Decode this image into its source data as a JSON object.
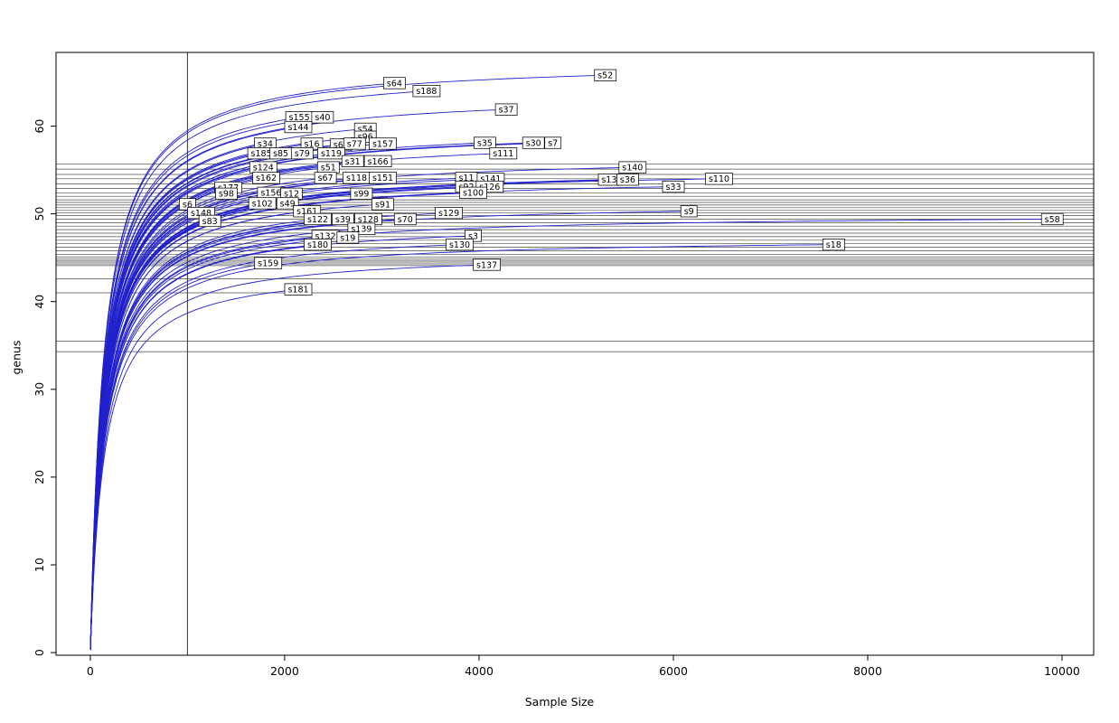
{
  "chart_data": {
    "type": "line",
    "title": "",
    "xlabel": "Sample Size",
    "ylabel": "genus",
    "xlim": [
      -353,
      10326
    ],
    "ylim": [
      -0.3,
      68.4
    ],
    "x_ticks": [
      0,
      2000,
      4000,
      6000,
      8000,
      10000
    ],
    "y_ticks": [
      0,
      10,
      20,
      30,
      40,
      50,
      60
    ],
    "grid": false,
    "legend": "none",
    "vline_x": 1000,
    "line_color": "#2020cc",
    "hline_color": "#4a4a4a",
    "axis_color": "#000000",
    "label_box_fill": "#ffffff",
    "label_box_stroke": "#000000",
    "curve_saturation_k": 140,
    "hlines": [
      55.7,
      55.1,
      54.5,
      54.0,
      53.4,
      52.9,
      52.4,
      52.0,
      51.6,
      51.3,
      51.0,
      50.7,
      50.4,
      50.1,
      49.8,
      49.4,
      49.0,
      48.6,
      48.2,
      47.8,
      47.4,
      47.0,
      46.6,
      46.2,
      45.8,
      45.4,
      45.1,
      44.9,
      44.7,
      44.5,
      44.3,
      44.1,
      42.6,
      41.0,
      35.5,
      34.3
    ],
    "samples": [
      {
        "label": "s52",
        "x": 5300,
        "y": 65.8
      },
      {
        "label": "s64",
        "x": 3130,
        "y": 64.9
      },
      {
        "label": "s188",
        "x": 3460,
        "y": 64.0
      },
      {
        "label": "s37",
        "x": 4280,
        "y": 61.9
      },
      {
        "label": "s155",
        "x": 2150,
        "y": 61.0
      },
      {
        "label": "s40",
        "x": 2390,
        "y": 61.0
      },
      {
        "label": "s144",
        "x": 2140,
        "y": 59.9
      },
      {
        "label": "s54",
        "x": 2830,
        "y": 59.7
      },
      {
        "label": "s96",
        "x": 2830,
        "y": 58.8
      },
      {
        "label": "s34",
        "x": 1800,
        "y": 58.0
      },
      {
        "label": "s16",
        "x": 2280,
        "y": 58.0
      },
      {
        "label": "s65",
        "x": 2580,
        "y": 57.9
      },
      {
        "label": "s77",
        "x": 2720,
        "y": 58.0
      },
      {
        "label": "s157",
        "x": 3010,
        "y": 58.0
      },
      {
        "label": "s35",
        "x": 4060,
        "y": 58.1
      },
      {
        "label": "s30",
        "x": 4560,
        "y": 58.1
      },
      {
        "label": "s7",
        "x": 4760,
        "y": 58.1
      },
      {
        "label": "s185",
        "x": 1760,
        "y": 56.9
      },
      {
        "label": "s85",
        "x": 1960,
        "y": 56.9
      },
      {
        "label": "s79",
        "x": 2180,
        "y": 56.9
      },
      {
        "label": "s119",
        "x": 2480,
        "y": 56.9
      },
      {
        "label": "s111",
        "x": 4250,
        "y": 56.9
      },
      {
        "label": "s31",
        "x": 2700,
        "y": 56.0
      },
      {
        "label": "s166",
        "x": 2960,
        "y": 56.0
      },
      {
        "label": "s124",
        "x": 1780,
        "y": 55.3
      },
      {
        "label": "s51",
        "x": 2450,
        "y": 55.3
      },
      {
        "label": "s140",
        "x": 5580,
        "y": 55.3
      },
      {
        "label": "s162",
        "x": 1810,
        "y": 54.1
      },
      {
        "label": "s67",
        "x": 2420,
        "y": 54.1
      },
      {
        "label": "s118",
        "x": 2740,
        "y": 54.1
      },
      {
        "label": "s151",
        "x": 3010,
        "y": 54.1
      },
      {
        "label": "s11",
        "x": 3870,
        "y": 54.1
      },
      {
        "label": "s141",
        "x": 4120,
        "y": 54.0
      },
      {
        "label": "s13",
        "x": 5340,
        "y": 53.9
      },
      {
        "label": "s36",
        "x": 5530,
        "y": 53.9
      },
      {
        "label": "s110",
        "x": 6470,
        "y": 54.0
      },
      {
        "label": "s177",
        "x": 1420,
        "y": 53.0
      },
      {
        "label": "s92",
        "x": 3870,
        "y": 53.1
      },
      {
        "label": "s126",
        "x": 4110,
        "y": 53.1
      },
      {
        "label": "s33",
        "x": 6000,
        "y": 53.1
      },
      {
        "label": "s98",
        "x": 1400,
        "y": 52.3
      },
      {
        "label": "s156",
        "x": 1860,
        "y": 52.4
      },
      {
        "label": "s12",
        "x": 2070,
        "y": 52.3
      },
      {
        "label": "s99",
        "x": 2790,
        "y": 52.3
      },
      {
        "label": "s100",
        "x": 3940,
        "y": 52.4
      },
      {
        "label": "s6",
        "x": 1000,
        "y": 51.1
      },
      {
        "label": "s102",
        "x": 1770,
        "y": 51.2
      },
      {
        "label": "s49",
        "x": 2030,
        "y": 51.2
      },
      {
        "label": "s91",
        "x": 3010,
        "y": 51.1
      },
      {
        "label": "s148",
        "x": 1140,
        "y": 50.1
      },
      {
        "label": "s161",
        "x": 2230,
        "y": 50.3
      },
      {
        "label": "s129",
        "x": 3690,
        "y": 50.1
      },
      {
        "label": "s9",
        "x": 6160,
        "y": 50.3
      },
      {
        "label": "s83",
        "x": 1230,
        "y": 49.2
      },
      {
        "label": "s122",
        "x": 2340,
        "y": 49.4
      },
      {
        "label": "s39",
        "x": 2600,
        "y": 49.4
      },
      {
        "label": "s128",
        "x": 2860,
        "y": 49.4
      },
      {
        "label": "s70",
        "x": 3240,
        "y": 49.4
      },
      {
        "label": "s58",
        "x": 9900,
        "y": 49.4
      },
      {
        "label": "s139",
        "x": 2790,
        "y": 48.3
      },
      {
        "label": "s132",
        "x": 2420,
        "y": 47.5
      },
      {
        "label": "s19",
        "x": 2650,
        "y": 47.3
      },
      {
        "label": "s3",
        "x": 3940,
        "y": 47.5
      },
      {
        "label": "s180",
        "x": 2340,
        "y": 46.5
      },
      {
        "label": "s130",
        "x": 3800,
        "y": 46.5
      },
      {
        "label": "s18",
        "x": 7650,
        "y": 46.5
      },
      {
        "label": "s159",
        "x": 1830,
        "y": 44.4
      },
      {
        "label": "s137",
        "x": 4080,
        "y": 44.2
      },
      {
        "label": "s181",
        "x": 2140,
        "y": 41.4
      }
    ]
  }
}
